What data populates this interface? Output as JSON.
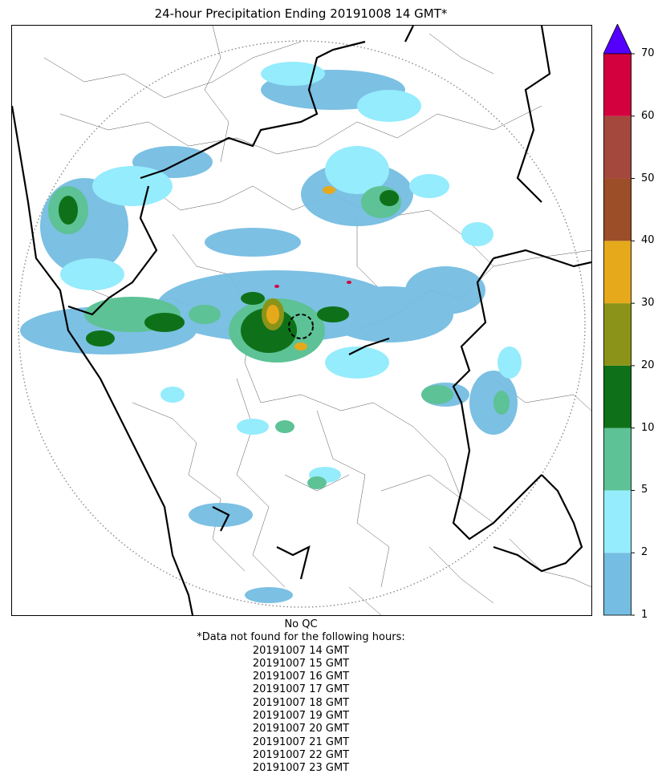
{
  "title": "24-hour Precipitation Ending 20191008 14 GMT*",
  "colorbar": {
    "tick_labels": [
      "1",
      "2",
      "5",
      "10",
      "20",
      "30",
      "40",
      "50",
      "60",
      "70"
    ],
    "colors": [
      "#75bde2",
      "#94ecfc",
      "#5dc295",
      "#0e7119",
      "#8b9419",
      "#e6a91b",
      "#9b4e27",
      "#a4483e",
      "#d3023f"
    ],
    "extend_color": "#5500ff"
  },
  "map_style": {
    "range_ring_color": "#888888",
    "border_color": "#000000",
    "district_line_color": "#555555"
  },
  "notes": {
    "qc": "No QC",
    "missing_header": "*Data not found for the following hours:",
    "missing_hours": [
      "20191007 14 GMT",
      "20191007 15 GMT",
      "20191007 16 GMT",
      "20191007 17 GMT",
      "20191007 18 GMT",
      "20191007 19 GMT",
      "20191007 20 GMT",
      "20191007 21 GMT",
      "20191007 22 GMT",
      "20191007 23 GMT"
    ]
  }
}
